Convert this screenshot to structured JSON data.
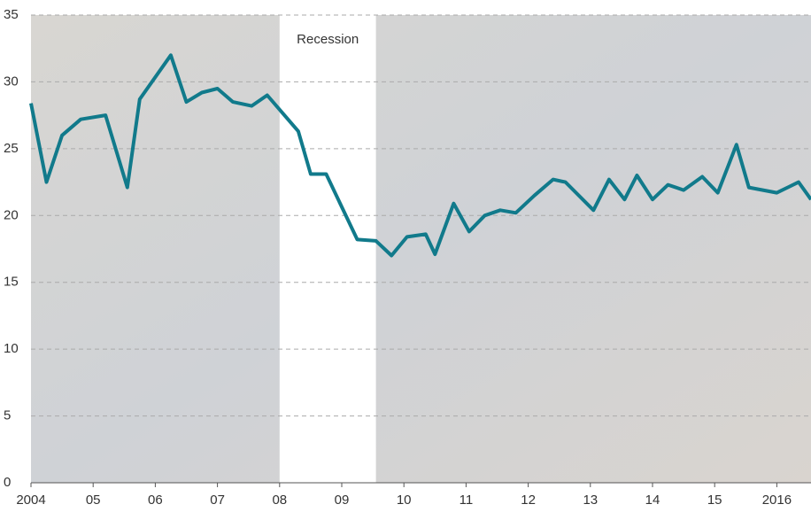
{
  "chart_data": {
    "type": "line",
    "x": [
      2004.0,
      2004.25,
      2004.5,
      2004.8,
      2005.2,
      2005.55,
      2005.75,
      2006.25,
      2006.5,
      2006.75,
      2007.0,
      2007.25,
      2007.55,
      2007.8,
      2008.3,
      2008.5,
      2008.75,
      2009.25,
      2009.55,
      2009.8,
      2010.05,
      2010.35,
      2010.5,
      2010.8,
      2011.05,
      2011.3,
      2011.55,
      2011.8,
      2012.1,
      2012.4,
      2012.6,
      2013.05,
      2013.3,
      2013.55,
      2013.75,
      2014.0,
      2014.25,
      2014.5,
      2014.8,
      2015.05,
      2015.35,
      2015.55,
      2016.0,
      2016.35,
      2016.55
    ],
    "values": [
      28.4,
      22.5,
      26.0,
      27.2,
      27.5,
      22.1,
      28.7,
      32.0,
      28.5,
      29.2,
      29.5,
      28.5,
      28.2,
      29.0,
      26.3,
      23.1,
      23.1,
      18.2,
      18.1,
      17.0,
      18.4,
      18.6,
      17.1,
      20.9,
      18.8,
      20.0,
      20.4,
      20.2,
      21.5,
      22.7,
      22.5,
      20.4,
      22.7,
      21.2,
      23.0,
      21.2,
      22.3,
      21.9,
      22.9,
      21.7,
      25.3,
      22.1,
      21.7,
      22.5,
      21.2
    ],
    "color": "#117a8b",
    "xlim": [
      2004,
      2016.55
    ],
    "xticks": [
      2004,
      {
        "value": 2005,
        "label": "05"
      },
      {
        "value": 2006,
        "label": "06"
      },
      {
        "value": 2007,
        "label": "07"
      },
      {
        "value": 2008,
        "label": "08"
      },
      {
        "value": 2009,
        "label": "09"
      },
      {
        "value": 2010,
        "label": "10"
      },
      {
        "value": 2011,
        "label": "11"
      },
      {
        "value": 2012,
        "label": "12"
      },
      {
        "value": 2013,
        "label": "13"
      },
      {
        "value": 2014,
        "label": "14"
      },
      {
        "value": 2015,
        "label": "15"
      },
      {
        "value": 2016,
        "label": "2016"
      }
    ],
    "ylim": [
      0,
      35
    ],
    "yticks": [
      0,
      5,
      10,
      15,
      20,
      25,
      30,
      35
    ],
    "grid": true,
    "recession": {
      "label": "Recession",
      "start": 2008.0,
      "end": 2009.55
    }
  }
}
